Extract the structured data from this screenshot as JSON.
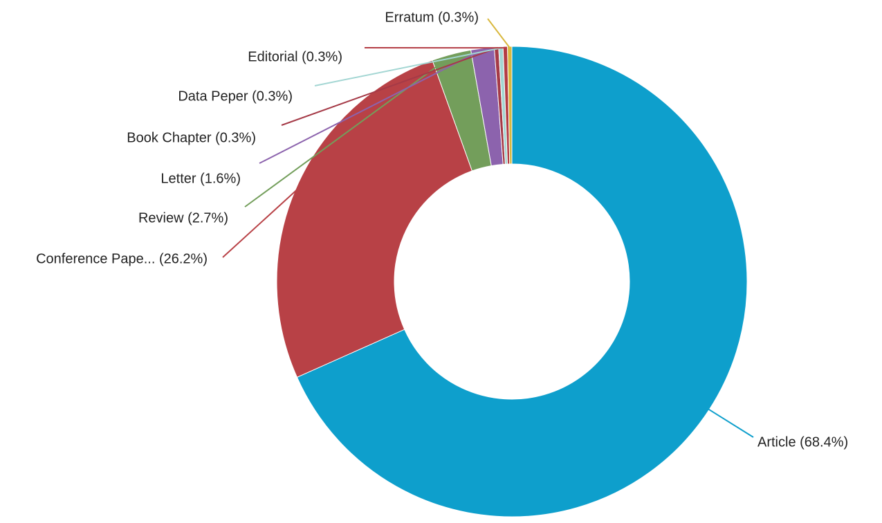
{
  "chart_data": {
    "type": "pie",
    "style": "donut",
    "start_angle_deg": 0,
    "direction": "clockwise",
    "slices": [
      {
        "category": "Article",
        "value": 68.4,
        "label": "Article (68.4%)",
        "color": "#0e9fcc"
      },
      {
        "category": "Conference Paper",
        "value": 26.2,
        "label": "Conference Pape... (26.2%)",
        "color": "#b84146"
      },
      {
        "category": "Review",
        "value": 2.7,
        "label": "Review (2.7%)",
        "color": "#739e5b"
      },
      {
        "category": "Letter",
        "value": 1.6,
        "label": "Letter (1.6%)",
        "color": "#8c63ad"
      },
      {
        "category": "Book Chapter",
        "value": 0.3,
        "label": "Book Chapter (0.3%)",
        "color": "#a53a47"
      },
      {
        "category": "Data Peper",
        "value": 0.3,
        "label": "Data Peper (0.3%)",
        "color": "#a3d6d3"
      },
      {
        "category": "Editorial",
        "value": 0.3,
        "label": "Editorial (0.3%)",
        "color": "#b33c44"
      },
      {
        "category": "Erratum",
        "value": 0.3,
        "label": "Erratum (0.3%)",
        "color": "#d9b83e"
      }
    ]
  }
}
